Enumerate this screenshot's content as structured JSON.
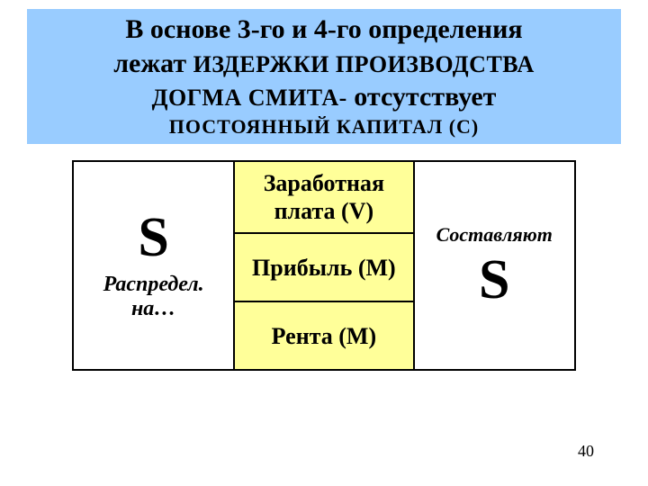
{
  "header": {
    "line1_a": "В основе 3-го и 4-го определения",
    "line2_a": "лежат",
    "line2_b": "издержки производства",
    "line3_a": "догма смита-",
    "line3_b": "отсутствует",
    "line4": "постоянный    капитал    (С)",
    "bg_color": "#99ccff"
  },
  "table": {
    "left": {
      "bigS": "S",
      "sub": "Распредел. на…"
    },
    "middle": {
      "row1": "Заработная плата (V)",
      "row2": "Прибыль (M)",
      "row3": "Рента (M)",
      "bg_color": "#ffff99"
    },
    "right": {
      "top": "Составляют",
      "bigS": "S"
    },
    "border_color": "#000000"
  },
  "page_number": "40",
  "colors": {
    "slide_bg": "#ffffff",
    "text": "#000000"
  }
}
